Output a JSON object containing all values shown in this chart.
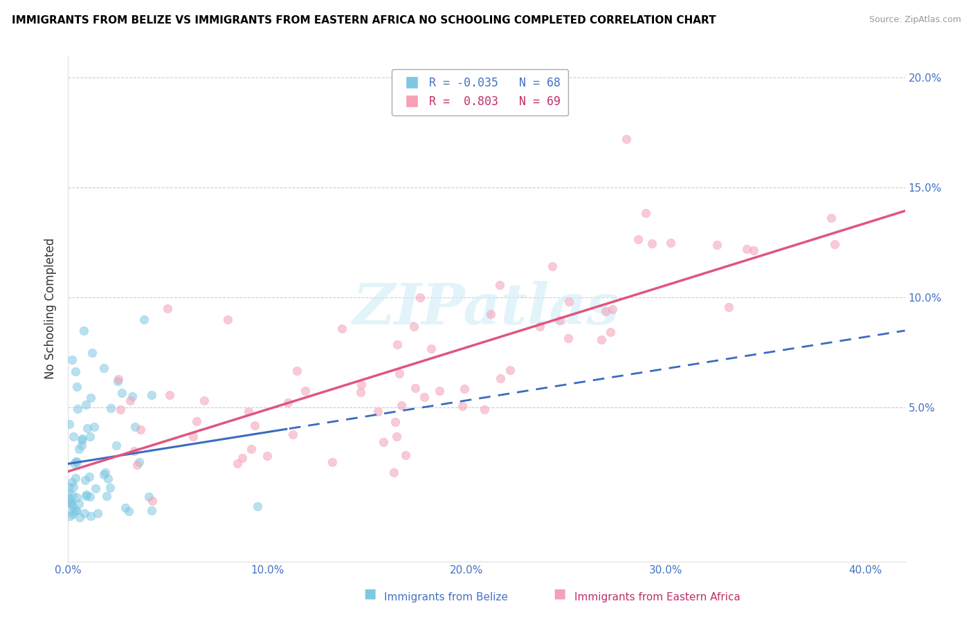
{
  "title": "IMMIGRANTS FROM BELIZE VS IMMIGRANTS FROM EASTERN AFRICA NO SCHOOLING COMPLETED CORRELATION CHART",
  "source": "Source: ZipAtlas.com",
  "ylabel": "No Schooling Completed",
  "legend_label_blue": "Immigrants from Belize",
  "legend_label_pink": "Immigrants from Eastern Africa",
  "r_blue": -0.035,
  "n_blue": 68,
  "r_pink": 0.803,
  "n_pink": 69,
  "color_blue": "#7ec8e3",
  "color_pink": "#f4a0b5",
  "color_line_blue": "#3a6bbf",
  "color_line_pink": "#e05580",
  "xlim": [
    0.0,
    0.42
  ],
  "ylim": [
    -0.02,
    0.21
  ],
  "xticks": [
    0.0,
    0.1,
    0.2,
    0.3,
    0.4
  ],
  "yticks_right": [
    0.05,
    0.1,
    0.15,
    0.2
  ],
  "ytick_left": [
    0.0
  ],
  "watermark": "ZIPatlas",
  "seed_blue": 42,
  "seed_pink": 123
}
